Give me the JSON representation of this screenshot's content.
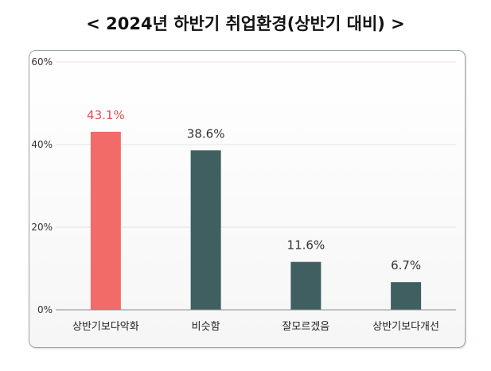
{
  "chart_data": {
    "type": "bar",
    "title": "< 2024년 하반기 취업환경(상반기 대비) >",
    "categories": [
      "상반기보다악화",
      "비슷함",
      "잘모르겠음",
      "상반기보다개선"
    ],
    "values": [
      43.1,
      38.6,
      11.6,
      6.7
    ],
    "value_labels": [
      "43.1%",
      "38.6%",
      "11.6%",
      "6.7%"
    ],
    "xlabel": "",
    "ylabel": "",
    "ylim": [
      0,
      60
    ],
    "yticks": [
      0,
      20,
      40,
      60
    ],
    "ytick_labels": [
      "0%",
      "20%",
      "40%",
      "60%"
    ],
    "grid": true,
    "colors": {
      "highlight": "#f26b69",
      "bar": "#3f5f60",
      "highlight_label": "#e0504d",
      "label": "#333333"
    },
    "highlight_index": 0
  }
}
